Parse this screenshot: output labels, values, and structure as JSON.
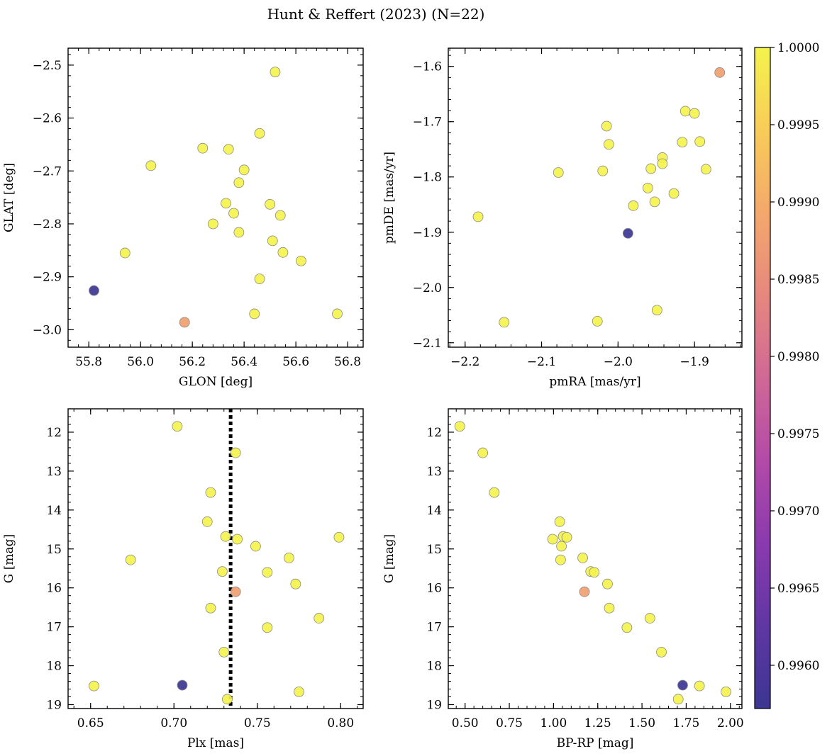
{
  "figure_title": "Hunt & Reffert (2023) (N=22)",
  "colors": {
    "cmap_stops": [
      "#3c3692",
      "#5f37a3",
      "#8a3aae",
      "#b34aa8",
      "#d06896",
      "#e6877e",
      "#f4a86c",
      "#f8cc58",
      "#f4f34d"
    ],
    "point_edge": "#8a8a8a"
  },
  "chart_data": [
    {
      "type": "scatter",
      "xlabel": "GLON [deg]",
      "ylabel": "GLAT [deg]",
      "xlim": [
        55.72,
        56.86
      ],
      "ylim": [
        -3.033,
        -2.468
      ],
      "xticks": [
        55.8,
        56.0,
        56.2,
        56.4,
        56.6,
        56.8
      ],
      "xtick_labels": [
        "55.8",
        "56.0",
        "56.2",
        "56.4",
        "56.6",
        "56.8"
      ],
      "yticks": [
        -2.5,
        -2.6,
        -2.7,
        -2.8,
        -2.9,
        -3.0
      ],
      "ytick_labels": [
        "−2.5",
        "−2.6",
        "−2.7",
        "−2.8",
        "−2.9",
        "−3.0"
      ],
      "points": [
        {
          "x": 56.52,
          "y": -2.513,
          "c": 1.0
        },
        {
          "x": 56.46,
          "y": -2.629,
          "c": 1.0
        },
        {
          "x": 56.24,
          "y": -2.657,
          "c": 1.0
        },
        {
          "x": 56.34,
          "y": -2.659,
          "c": 1.0
        },
        {
          "x": 56.04,
          "y": -2.69,
          "c": 1.0
        },
        {
          "x": 56.4,
          "y": -2.698,
          "c": 1.0
        },
        {
          "x": 56.38,
          "y": -2.722,
          "c": 1.0
        },
        {
          "x": 56.33,
          "y": -2.761,
          "c": 1.0
        },
        {
          "x": 56.5,
          "y": -2.763,
          "c": 1.0
        },
        {
          "x": 56.36,
          "y": -2.78,
          "c": 1.0
        },
        {
          "x": 56.54,
          "y": -2.784,
          "c": 1.0
        },
        {
          "x": 56.28,
          "y": -2.8,
          "c": 1.0
        },
        {
          "x": 56.38,
          "y": -2.816,
          "c": 1.0
        },
        {
          "x": 56.51,
          "y": -2.832,
          "c": 1.0
        },
        {
          "x": 55.94,
          "y": -2.855,
          "c": 1.0
        },
        {
          "x": 56.55,
          "y": -2.854,
          "c": 1.0
        },
        {
          "x": 56.62,
          "y": -2.87,
          "c": 1.0
        },
        {
          "x": 56.46,
          "y": -2.904,
          "c": 1.0
        },
        {
          "x": 55.82,
          "y": -2.926,
          "c": 0.9957
        },
        {
          "x": 56.44,
          "y": -2.97,
          "c": 1.0
        },
        {
          "x": 56.76,
          "y": -2.97,
          "c": 1.0
        },
        {
          "x": 56.17,
          "y": -2.986,
          "c": 0.9988
        }
      ]
    },
    {
      "type": "scatter",
      "xlabel": "pmRA [mas/yr]",
      "ylabel": "pmDE [mas/yr]",
      "xlim": [
        -2.222,
        -1.838
      ],
      "ylim": [
        -2.108,
        -1.567
      ],
      "xticks": [
        -2.2,
        -2.1,
        -2.0,
        -1.9
      ],
      "xtick_labels": [
        "−2.2",
        "−2.1",
        "−2.0",
        "−1.9"
      ],
      "yticks": [
        -1.6,
        -1.7,
        -1.8,
        -1.9,
        -2.0,
        -2.1
      ],
      "ytick_labels": [
        "−1.6",
        "−1.7",
        "−1.8",
        "−1.9",
        "−2.0",
        "−2.1"
      ],
      "points": [
        {
          "x": -1.867,
          "y": -1.611,
          "c": 0.9988
        },
        {
          "x": -1.912,
          "y": -1.681,
          "c": 1.0
        },
        {
          "x": -1.9,
          "y": -1.685,
          "c": 1.0
        },
        {
          "x": -2.015,
          "y": -1.708,
          "c": 1.0
        },
        {
          "x": -1.916,
          "y": -1.737,
          "c": 1.0
        },
        {
          "x": -1.893,
          "y": -1.736,
          "c": 1.0
        },
        {
          "x": -2.012,
          "y": -1.741,
          "c": 1.0
        },
        {
          "x": -1.942,
          "y": -1.765,
          "c": 1.0
        },
        {
          "x": -1.942,
          "y": -1.776,
          "c": 1.0
        },
        {
          "x": -1.957,
          "y": -1.785,
          "c": 1.0
        },
        {
          "x": -1.885,
          "y": -1.786,
          "c": 1.0
        },
        {
          "x": -2.02,
          "y": -1.789,
          "c": 1.0
        },
        {
          "x": -2.078,
          "y": -1.792,
          "c": 1.0
        },
        {
          "x": -1.961,
          "y": -1.82,
          "c": 1.0
        },
        {
          "x": -1.927,
          "y": -1.83,
          "c": 1.0
        },
        {
          "x": -1.952,
          "y": -1.845,
          "c": 1.0
        },
        {
          "x": -1.98,
          "y": -1.852,
          "c": 1.0
        },
        {
          "x": -2.183,
          "y": -1.872,
          "c": 1.0
        },
        {
          "x": -1.987,
          "y": -1.902,
          "c": 0.9957
        },
        {
          "x": -1.949,
          "y": -2.041,
          "c": 1.0
        },
        {
          "x": -2.027,
          "y": -2.061,
          "c": 1.0
        },
        {
          "x": -2.149,
          "y": -2.063,
          "c": 1.0
        }
      ]
    },
    {
      "type": "scatter",
      "xlabel": "Plx [mas]",
      "ylabel": "G [mag]",
      "xlim": [
        0.6365,
        0.8135
      ],
      "ylim": [
        19.1,
        11.4
      ],
      "xticks": [
        0.65,
        0.7,
        0.75,
        0.8
      ],
      "xtick_labels": [
        "0.65",
        "0.70",
        "0.75",
        "0.80"
      ],
      "yticks": [
        12,
        13,
        14,
        15,
        16,
        17,
        18,
        19
      ],
      "ytick_labels": [
        "12",
        "13",
        "14",
        "15",
        "16",
        "17",
        "18",
        "19"
      ],
      "reference_line_x": 0.734,
      "points": [
        {
          "x": 0.702,
          "y": 11.85,
          "c": 1.0
        },
        {
          "x": 0.737,
          "y": 12.53,
          "c": 1.0
        },
        {
          "x": 0.722,
          "y": 13.55,
          "c": 1.0
        },
        {
          "x": 0.72,
          "y": 14.3,
          "c": 1.0
        },
        {
          "x": 0.731,
          "y": 14.68,
          "c": 1.0
        },
        {
          "x": 0.738,
          "y": 14.75,
          "c": 1.0
        },
        {
          "x": 0.799,
          "y": 14.7,
          "c": 1.0
        },
        {
          "x": 0.749,
          "y": 14.93,
          "c": 1.0
        },
        {
          "x": 0.769,
          "y": 15.23,
          "c": 1.0
        },
        {
          "x": 0.674,
          "y": 15.28,
          "c": 1.0
        },
        {
          "x": 0.729,
          "y": 15.58,
          "c": 1.0
        },
        {
          "x": 0.756,
          "y": 15.6,
          "c": 1.0
        },
        {
          "x": 0.773,
          "y": 15.9,
          "c": 1.0
        },
        {
          "x": 0.737,
          "y": 16.1,
          "c": 0.9988
        },
        {
          "x": 0.722,
          "y": 16.52,
          "c": 1.0
        },
        {
          "x": 0.787,
          "y": 16.78,
          "c": 1.0
        },
        {
          "x": 0.756,
          "y": 17.02,
          "c": 1.0
        },
        {
          "x": 0.73,
          "y": 17.65,
          "c": 1.0
        },
        {
          "x": 0.652,
          "y": 18.52,
          "c": 1.0
        },
        {
          "x": 0.705,
          "y": 18.5,
          "c": 0.9957
        },
        {
          "x": 0.775,
          "y": 18.67,
          "c": 1.0
        },
        {
          "x": 0.732,
          "y": 18.86,
          "c": 1.0
        }
      ]
    },
    {
      "type": "scatter",
      "xlabel": "BP-RP [mag]",
      "ylabel": "G [mag]",
      "xlim": [
        0.405,
        2.065
      ],
      "ylim": [
        19.1,
        11.4
      ],
      "xticks": [
        0.5,
        0.75,
        1.0,
        1.25,
        1.5,
        1.75,
        2.0
      ],
      "xtick_labels": [
        "0.50",
        "0.75",
        "1.00",
        "1.25",
        "1.50",
        "1.75",
        "2.00"
      ],
      "yticks": [
        12,
        13,
        14,
        15,
        16,
        17,
        18,
        19
      ],
      "ytick_labels": [
        "12",
        "13",
        "14",
        "15",
        "16",
        "17",
        "18",
        "19"
      ],
      "points": [
        {
          "x": 0.47,
          "y": 11.85,
          "c": 1.0
        },
        {
          "x": 0.6,
          "y": 12.53,
          "c": 1.0
        },
        {
          "x": 0.665,
          "y": 13.55,
          "c": 1.0
        },
        {
          "x": 1.035,
          "y": 14.3,
          "c": 1.0
        },
        {
          "x": 1.055,
          "y": 14.68,
          "c": 1.0
        },
        {
          "x": 1.075,
          "y": 14.7,
          "c": 1.0
        },
        {
          "x": 0.995,
          "y": 14.75,
          "c": 1.0
        },
        {
          "x": 1.045,
          "y": 14.93,
          "c": 1.0
        },
        {
          "x": 1.165,
          "y": 15.23,
          "c": 1.0
        },
        {
          "x": 1.04,
          "y": 15.28,
          "c": 1.0
        },
        {
          "x": 1.21,
          "y": 15.58,
          "c": 1.0
        },
        {
          "x": 1.23,
          "y": 15.6,
          "c": 1.0
        },
        {
          "x": 1.305,
          "y": 15.9,
          "c": 1.0
        },
        {
          "x": 1.175,
          "y": 16.1,
          "c": 0.9988
        },
        {
          "x": 1.315,
          "y": 16.52,
          "c": 1.0
        },
        {
          "x": 1.545,
          "y": 16.78,
          "c": 1.0
        },
        {
          "x": 1.415,
          "y": 17.02,
          "c": 1.0
        },
        {
          "x": 1.61,
          "y": 17.65,
          "c": 1.0
        },
        {
          "x": 1.825,
          "y": 18.52,
          "c": 1.0
        },
        {
          "x": 1.73,
          "y": 18.5,
          "c": 0.9957
        },
        {
          "x": 1.975,
          "y": 18.67,
          "c": 1.0
        },
        {
          "x": 1.705,
          "y": 18.86,
          "c": 1.0
        }
      ]
    }
  ],
  "colorbar": {
    "vmin": 0.99572,
    "vmax": 1.0,
    "ticks": [
      1.0,
      0.9995,
      0.999,
      0.9985,
      0.998,
      0.9975,
      0.997,
      0.9965,
      0.996
    ],
    "tick_labels": [
      "1.0000",
      "0.9995",
      "0.9990",
      "0.9985",
      "0.9980",
      "0.9975",
      "0.9970",
      "0.9965",
      "0.9960"
    ]
  }
}
